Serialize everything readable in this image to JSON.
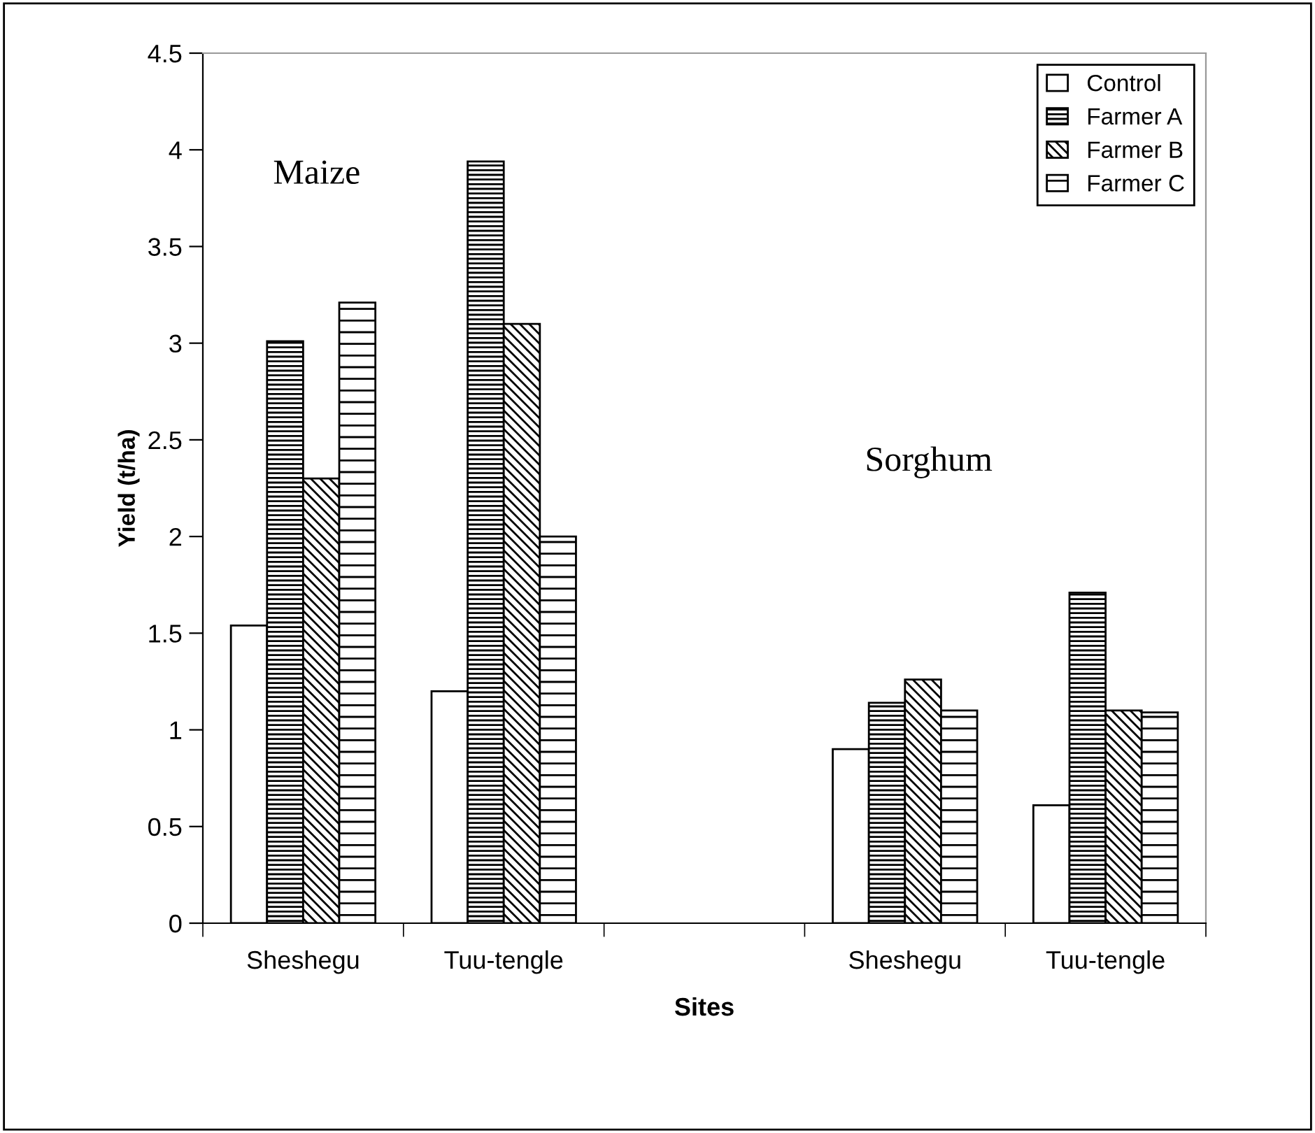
{
  "chart_data": {
    "type": "bar",
    "xlabel": "Sites",
    "ylabel": "Yield (t/ha)",
    "categories": [
      "Sheshegu",
      "Tuu-tengle",
      null,
      "Sheshegu",
      "Tuu-tengle"
    ],
    "series": [
      {
        "name": "Control",
        "color": "#ffffff",
        "values": [
          1.54,
          1.2,
          null,
          0.9,
          0.61
        ]
      },
      {
        "name": "Farmer A",
        "color": "#000000",
        "values": [
          3.01,
          3.94,
          null,
          1.14,
          1.71
        ]
      },
      {
        "name": "Farmer B",
        "color": "#000000",
        "values": [
          2.3,
          3.1,
          null,
          1.26,
          1.1
        ]
      },
      {
        "name": "Farmer C",
        "color": "#000000",
        "values": [
          3.21,
          2.0,
          null,
          1.1,
          1.09
        ]
      }
    ],
    "ylim": [
      0,
      4.5
    ],
    "yticks": [
      0,
      0.5,
      1,
      1.5,
      2,
      2.5,
      3,
      3.5,
      4,
      4.5
    ],
    "annotations": [
      "Maize",
      "Sorghum"
    ],
    "grid": false,
    "legend": "top right"
  }
}
